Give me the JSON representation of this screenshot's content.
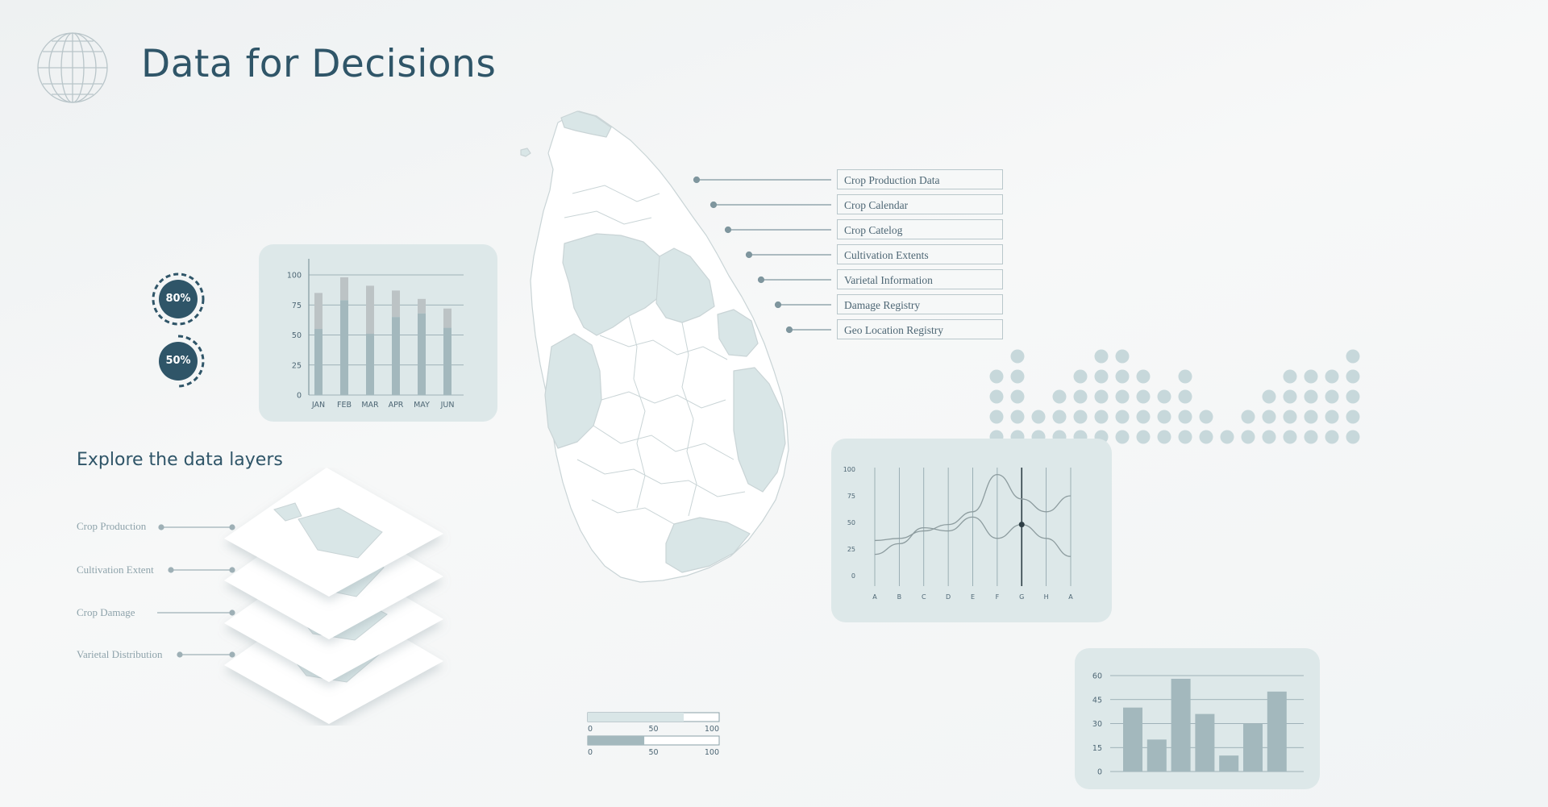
{
  "header": {
    "title": "Data for Decisions",
    "logo_icon": "globe-icon"
  },
  "progress_rings": [
    {
      "label": "80%",
      "value": 0.8
    },
    {
      "label": "50%",
      "value": 0.5
    }
  ],
  "map": {
    "callouts": [
      "Crop Production Data",
      "Crop Calendar",
      "Crop Catelog",
      "Cultivation Extents",
      "Varietal Information",
      "Damage Registry",
      "Geo Location Registry"
    ]
  },
  "layers": {
    "title": "Explore the data layers",
    "items": [
      "Crop Production",
      "Cultivation Extent",
      "Crop Damage",
      "Varietal Distribution"
    ]
  },
  "range_bars": [
    {
      "value": 73,
      "ticks": [
        "0",
        "50",
        "100"
      ]
    },
    {
      "value": 43,
      "ticks": [
        "0",
        "50",
        "100"
      ]
    }
  ],
  "dot_matrix": {
    "column_heights": [
      4,
      5,
      2,
      3,
      4,
      5,
      5,
      4,
      3,
      4,
      2,
      1,
      2,
      3,
      4,
      4,
      4,
      5
    ]
  },
  "colors": {
    "primary": "#2f5568",
    "card": "#dde8e9",
    "bar_dark": "#a3b8bd",
    "bar_light": "#bcc3c5",
    "dot": "#c7d8db",
    "map_fill": "#ffffff",
    "map_highlight": "#d9e6e7"
  },
  "chart_data": [
    {
      "type": "bar",
      "stacked": true,
      "categories": [
        "JAN",
        "FEB",
        "MAR",
        "APR",
        "MAY",
        "JUN"
      ],
      "series": [
        {
          "values": [
            55,
            79,
            51,
            65,
            68,
            56
          ]
        },
        {
          "values": [
            30,
            19,
            40,
            22,
            12,
            16
          ]
        }
      ],
      "yticks": [
        "0",
        "25",
        "50",
        "75",
        "100"
      ],
      "ylim": [
        0,
        100
      ]
    },
    {
      "type": "line",
      "categories": [
        "A",
        "B",
        "C",
        "D",
        "E",
        "F",
        "G",
        "H",
        "A"
      ],
      "series": [
        {
          "values": [
            20,
            30,
            45,
            42,
            55,
            35,
            48,
            35,
            18
          ]
        },
        {
          "values": [
            33,
            35,
            42,
            48,
            60,
            95,
            72,
            60,
            75
          ]
        }
      ],
      "highlight_index": 6,
      "yticks": [
        "0",
        "25",
        "50",
        "75",
        "100"
      ],
      "ylim": [
        0,
        100
      ]
    },
    {
      "type": "bar",
      "values": [
        40,
        20,
        58,
        36,
        10,
        30,
        50
      ],
      "yticks": [
        "0",
        "15",
        "30",
        "45",
        "60"
      ],
      "ylim": [
        0,
        60
      ]
    }
  ]
}
